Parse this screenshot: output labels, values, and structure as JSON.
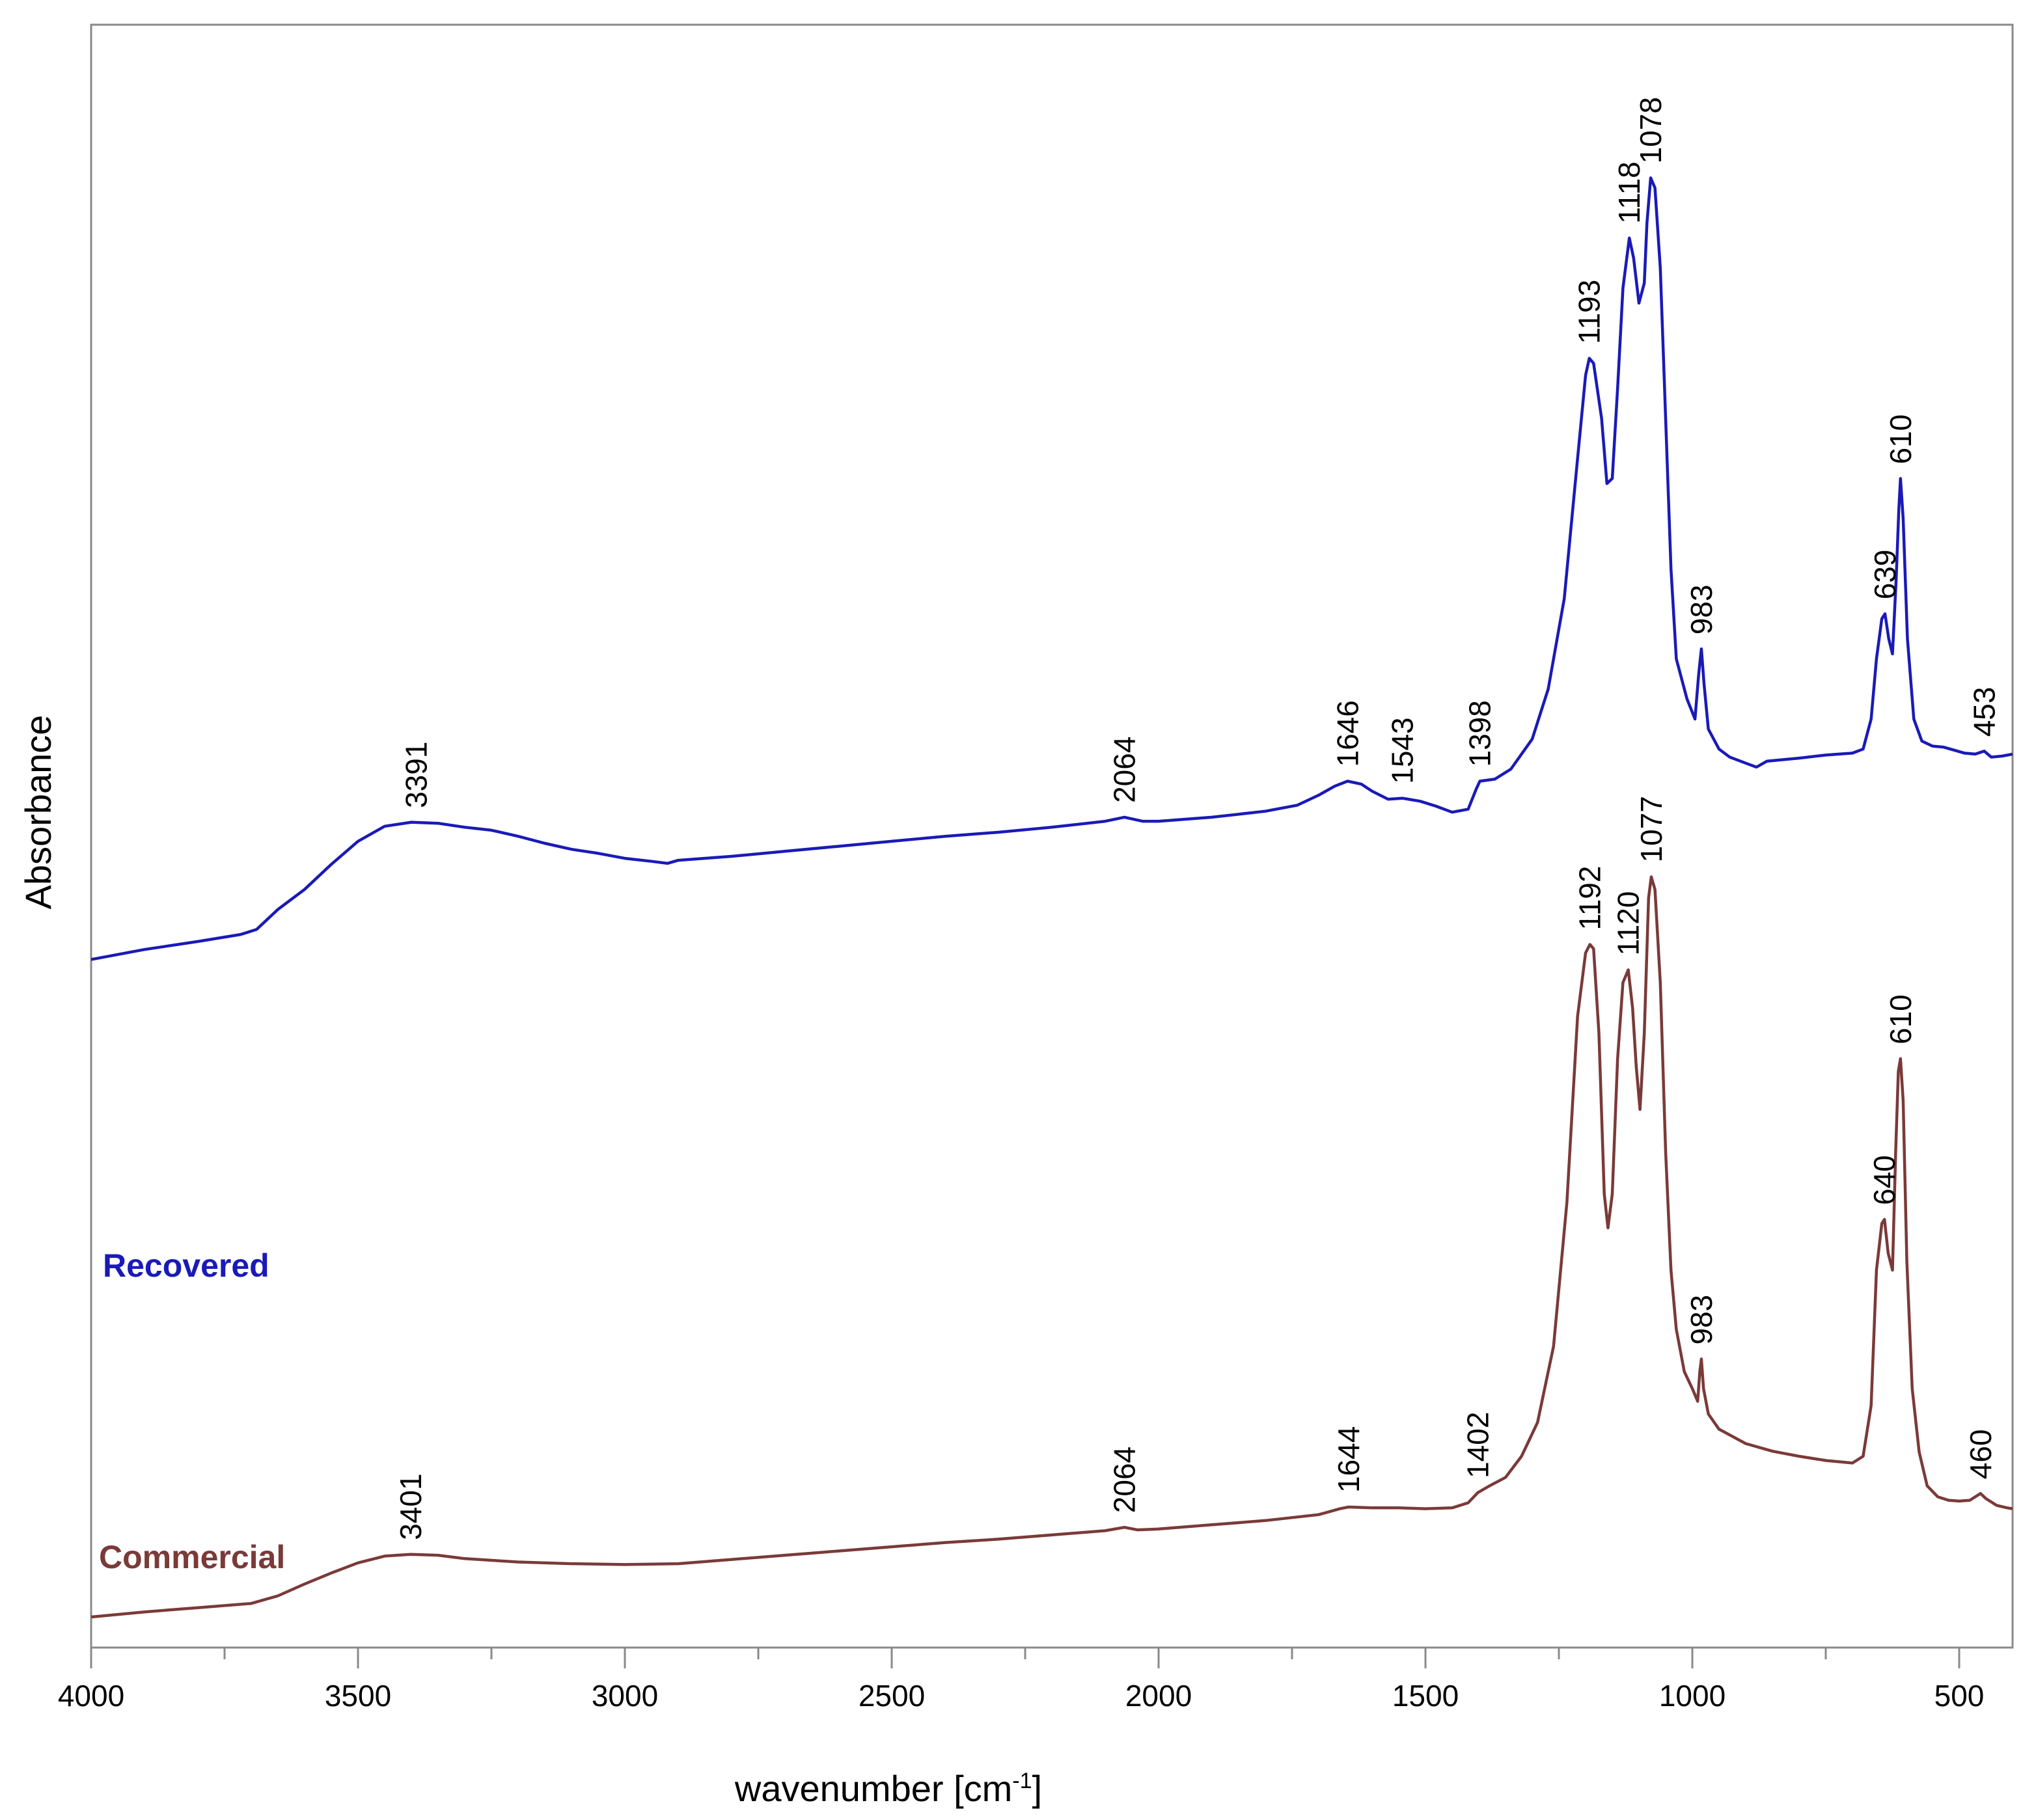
{
  "chart_data": {
    "type": "line",
    "title": "",
    "xlabel": "wavenumber [cm",
    "xlabel_superscript": "-1",
    "xlabel_suffix": "]",
    "ylabel": "Absorbance",
    "xlim": [
      4000,
      400
    ],
    "x_reversed": true,
    "ylim": [
      0,
      1
    ],
    "x_ticks": [
      4000,
      3500,
      3000,
      2500,
      2000,
      1500,
      1000,
      500
    ],
    "x_tick_labels": [
      "4000",
      "3500",
      "3000",
      "2500",
      "2000",
      "1500",
      "1000",
      "500"
    ],
    "y_ticks_shown": false,
    "grid": false,
    "series": [
      {
        "name": "Recovered",
        "color": "#1a1ab8",
        "points": [
          [
            4000,
            0.26
          ],
          [
            3900,
            0.27
          ],
          [
            3800,
            0.278
          ],
          [
            3720,
            0.285
          ],
          [
            3690,
            0.29
          ],
          [
            3650,
            0.31
          ],
          [
            3600,
            0.33
          ],
          [
            3550,
            0.355
          ],
          [
            3500,
            0.378
          ],
          [
            3450,
            0.393
          ],
          [
            3400,
            0.397
          ],
          [
            3350,
            0.396
          ],
          [
            3300,
            0.392
          ],
          [
            3250,
            0.389
          ],
          [
            3200,
            0.383
          ],
          [
            3150,
            0.376
          ],
          [
            3100,
            0.37
          ],
          [
            3050,
            0.366
          ],
          [
            3000,
            0.361
          ],
          [
            2950,
            0.358
          ],
          [
            2920,
            0.356
          ],
          [
            2900,
            0.359
          ],
          [
            2800,
            0.363
          ],
          [
            2700,
            0.368
          ],
          [
            2600,
            0.373
          ],
          [
            2500,
            0.378
          ],
          [
            2400,
            0.383
          ],
          [
            2300,
            0.387
          ],
          [
            2200,
            0.392
          ],
          [
            2100,
            0.398
          ],
          [
            2064,
            0.402
          ],
          [
            2030,
            0.398
          ],
          [
            2000,
            0.398
          ],
          [
            1900,
            0.402
          ],
          [
            1800,
            0.408
          ],
          [
            1740,
            0.414
          ],
          [
            1700,
            0.424
          ],
          [
            1670,
            0.433
          ],
          [
            1646,
            0.438
          ],
          [
            1620,
            0.435
          ],
          [
            1600,
            0.428
          ],
          [
            1570,
            0.42
          ],
          [
            1543,
            0.421
          ],
          [
            1510,
            0.418
          ],
          [
            1480,
            0.413
          ],
          [
            1450,
            0.407
          ],
          [
            1420,
            0.41
          ],
          [
            1405,
            0.43
          ],
          [
            1398,
            0.438
          ],
          [
            1370,
            0.44
          ],
          [
            1340,
            0.45
          ],
          [
            1300,
            0.48
          ],
          [
            1270,
            0.53
          ],
          [
            1240,
            0.62
          ],
          [
            1215,
            0.76
          ],
          [
            1200,
            0.843
          ],
          [
            1193,
            0.86
          ],
          [
            1185,
            0.855
          ],
          [
            1170,
            0.8
          ],
          [
            1160,
            0.735
          ],
          [
            1150,
            0.74
          ],
          [
            1140,
            0.83
          ],
          [
            1130,
            0.93
          ],
          [
            1118,
            0.98
          ],
          [
            1110,
            0.96
          ],
          [
            1100,
            0.915
          ],
          [
            1090,
            0.935
          ],
          [
            1085,
            0.995
          ],
          [
            1078,
            1.04
          ],
          [
            1070,
            1.03
          ],
          [
            1060,
            0.95
          ],
          [
            1050,
            0.8
          ],
          [
            1040,
            0.65
          ],
          [
            1030,
            0.56
          ],
          [
            1010,
            0.52
          ],
          [
            995,
            0.5
          ],
          [
            988,
            0.545
          ],
          [
            983,
            0.57
          ],
          [
            978,
            0.535
          ],
          [
            970,
            0.49
          ],
          [
            950,
            0.47
          ],
          [
            930,
            0.462
          ],
          [
            900,
            0.456
          ],
          [
            880,
            0.452
          ],
          [
            860,
            0.458
          ],
          [
            800,
            0.461
          ],
          [
            750,
            0.464
          ],
          [
            700,
            0.466
          ],
          [
            680,
            0.47
          ],
          [
            665,
            0.5
          ],
          [
            655,
            0.56
          ],
          [
            645,
            0.6
          ],
          [
            639,
            0.605
          ],
          [
            632,
            0.58
          ],
          [
            625,
            0.565
          ],
          [
            618,
            0.64
          ],
          [
            613,
            0.71
          ],
          [
            610,
            0.74
          ],
          [
            605,
            0.7
          ],
          [
            597,
            0.58
          ],
          [
            585,
            0.5
          ],
          [
            570,
            0.478
          ],
          [
            550,
            0.473
          ],
          [
            530,
            0.472
          ],
          [
            510,
            0.469
          ],
          [
            490,
            0.466
          ],
          [
            470,
            0.465
          ],
          [
            453,
            0.468
          ],
          [
            440,
            0.462
          ],
          [
            420,
            0.463
          ],
          [
            400,
            0.465
          ]
        ]
      },
      {
        "name": "Commercial",
        "color": "#7a3a38",
        "points": [
          [
            4000,
            0.01
          ],
          [
            3900,
            0.016
          ],
          [
            3800,
            0.021
          ],
          [
            3700,
            0.026
          ],
          [
            3650,
            0.035
          ],
          [
            3600,
            0.049
          ],
          [
            3550,
            0.062
          ],
          [
            3500,
            0.074
          ],
          [
            3450,
            0.082
          ],
          [
            3401,
            0.084
          ],
          [
            3350,
            0.083
          ],
          [
            3300,
            0.079
          ],
          [
            3250,
            0.077
          ],
          [
            3200,
            0.075
          ],
          [
            3100,
            0.073
          ],
          [
            3000,
            0.072
          ],
          [
            2900,
            0.073
          ],
          [
            2800,
            0.078
          ],
          [
            2700,
            0.083
          ],
          [
            2600,
            0.088
          ],
          [
            2500,
            0.093
          ],
          [
            2400,
            0.098
          ],
          [
            2300,
            0.102
          ],
          [
            2200,
            0.107
          ],
          [
            2100,
            0.112
          ],
          [
            2064,
            0.116
          ],
          [
            2040,
            0.113
          ],
          [
            2000,
            0.114
          ],
          [
            1900,
            0.119
          ],
          [
            1800,
            0.124
          ],
          [
            1700,
            0.131
          ],
          [
            1660,
            0.138
          ],
          [
            1644,
            0.14
          ],
          [
            1600,
            0.139
          ],
          [
            1550,
            0.139
          ],
          [
            1500,
            0.138
          ],
          [
            1450,
            0.139
          ],
          [
            1420,
            0.145
          ],
          [
            1402,
            0.157
          ],
          [
            1380,
            0.165
          ],
          [
            1350,
            0.175
          ],
          [
            1320,
            0.2
          ],
          [
            1290,
            0.24
          ],
          [
            1260,
            0.33
          ],
          [
            1235,
            0.5
          ],
          [
            1215,
            0.72
          ],
          [
            1200,
            0.795
          ],
          [
            1192,
            0.805
          ],
          [
            1185,
            0.8
          ],
          [
            1175,
            0.7
          ],
          [
            1165,
            0.51
          ],
          [
            1158,
            0.47
          ],
          [
            1150,
            0.51
          ],
          [
            1140,
            0.67
          ],
          [
            1130,
            0.76
          ],
          [
            1120,
            0.775
          ],
          [
            1112,
            0.73
          ],
          [
            1105,
            0.66
          ],
          [
            1098,
            0.61
          ],
          [
            1090,
            0.7
          ],
          [
            1082,
            0.86
          ],
          [
            1077,
            0.885
          ],
          [
            1070,
            0.87
          ],
          [
            1060,
            0.76
          ],
          [
            1050,
            0.56
          ],
          [
            1040,
            0.42
          ],
          [
            1030,
            0.35
          ],
          [
            1015,
            0.3
          ],
          [
            1000,
            0.28
          ],
          [
            990,
            0.265
          ],
          [
            986,
            0.3
          ],
          [
            983,
            0.315
          ],
          [
            979,
            0.28
          ],
          [
            970,
            0.25
          ],
          [
            950,
            0.232
          ],
          [
            900,
            0.215
          ],
          [
            850,
            0.206
          ],
          [
            800,
            0.2
          ],
          [
            750,
            0.195
          ],
          [
            700,
            0.192
          ],
          [
            680,
            0.2
          ],
          [
            665,
            0.26
          ],
          [
            655,
            0.42
          ],
          [
            645,
            0.475
          ],
          [
            640,
            0.48
          ],
          [
            633,
            0.44
          ],
          [
            625,
            0.42
          ],
          [
            619,
            0.56
          ],
          [
            614,
            0.655
          ],
          [
            610,
            0.67
          ],
          [
            605,
            0.62
          ],
          [
            598,
            0.43
          ],
          [
            588,
            0.28
          ],
          [
            575,
            0.205
          ],
          [
            560,
            0.165
          ],
          [
            540,
            0.152
          ],
          [
            520,
            0.148
          ],
          [
            500,
            0.147
          ],
          [
            480,
            0.148
          ],
          [
            470,
            0.152
          ],
          [
            460,
            0.156
          ],
          [
            450,
            0.15
          ],
          [
            430,
            0.142
          ],
          [
            410,
            0.139
          ],
          [
            400,
            0.138
          ]
        ]
      }
    ],
    "peak_annotations": [
      {
        "series": "Recovered",
        "wavenumber": 3391,
        "label": "3391"
      },
      {
        "series": "Recovered",
        "wavenumber": 2064,
        "label": "2064"
      },
      {
        "series": "Recovered",
        "wavenumber": 1646,
        "label": "1646"
      },
      {
        "series": "Recovered",
        "wavenumber": 1543,
        "label": "1543"
      },
      {
        "series": "Recovered",
        "wavenumber": 1398,
        "label": "1398"
      },
      {
        "series": "Recovered",
        "wavenumber": 1193,
        "label": "1193"
      },
      {
        "series": "Recovered",
        "wavenumber": 1118,
        "label": "1118"
      },
      {
        "series": "Recovered",
        "wavenumber": 1078,
        "label": "1078"
      },
      {
        "series": "Recovered",
        "wavenumber": 983,
        "label": "983"
      },
      {
        "series": "Recovered",
        "wavenumber": 639,
        "label": "639"
      },
      {
        "series": "Recovered",
        "wavenumber": 610,
        "label": "610"
      },
      {
        "series": "Recovered",
        "wavenumber": 453,
        "label": "453"
      },
      {
        "series": "Commercial",
        "wavenumber": 3401,
        "label": "3401"
      },
      {
        "series": "Commercial",
        "wavenumber": 2064,
        "label": "2064"
      },
      {
        "series": "Commercial",
        "wavenumber": 1644,
        "label": "1644"
      },
      {
        "series": "Commercial",
        "wavenumber": 1402,
        "label": "1402"
      },
      {
        "series": "Commercial",
        "wavenumber": 1192,
        "label": "1192"
      },
      {
        "series": "Commercial",
        "wavenumber": 1120,
        "label": "1120"
      },
      {
        "series": "Commercial",
        "wavenumber": 1077,
        "label": "1077"
      },
      {
        "series": "Commercial",
        "wavenumber": 983,
        "label": "983"
      },
      {
        "series": "Commercial",
        "wavenumber": 640,
        "label": "640"
      },
      {
        "series": "Commercial",
        "wavenumber": 610,
        "label": "610"
      },
      {
        "series": "Commercial",
        "wavenumber": 460,
        "label": "460"
      }
    ]
  }
}
